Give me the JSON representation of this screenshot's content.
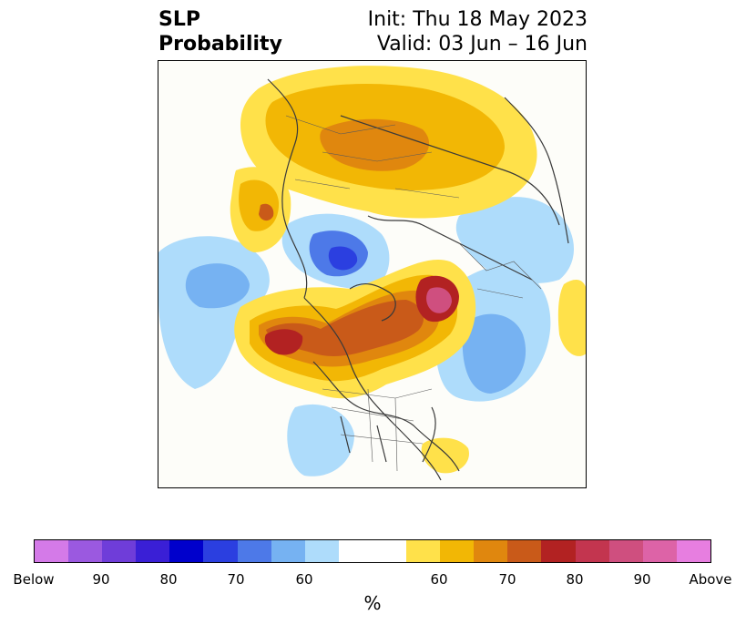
{
  "title": {
    "left_line1": "SLP",
    "left_line2": "Probability",
    "right_line1": "Init: Thu 18 May 2023",
    "right_line2": "Valid: 03 Jun – 16 Jun"
  },
  "colorbar": {
    "unit_label": "%",
    "colors": [
      "#d47ae8",
      "#9b59e0",
      "#6f3dd9",
      "#3a1fd6",
      "#0000cc",
      "#2b3fe0",
      "#4d79e8",
      "#76b2f2",
      "#aedcfb",
      "#ffffff",
      "#ffffff",
      "#ffe14a",
      "#f2b705",
      "#e0870e",
      "#c95a19",
      "#b22222",
      "#c3354f",
      "#cf4f7f",
      "#dd63a7",
      "#e77ee0"
    ],
    "tick_labels": [
      "Below",
      "90",
      "80",
      "70",
      "60",
      "60",
      "70",
      "80",
      "90",
      "Above"
    ]
  }
}
